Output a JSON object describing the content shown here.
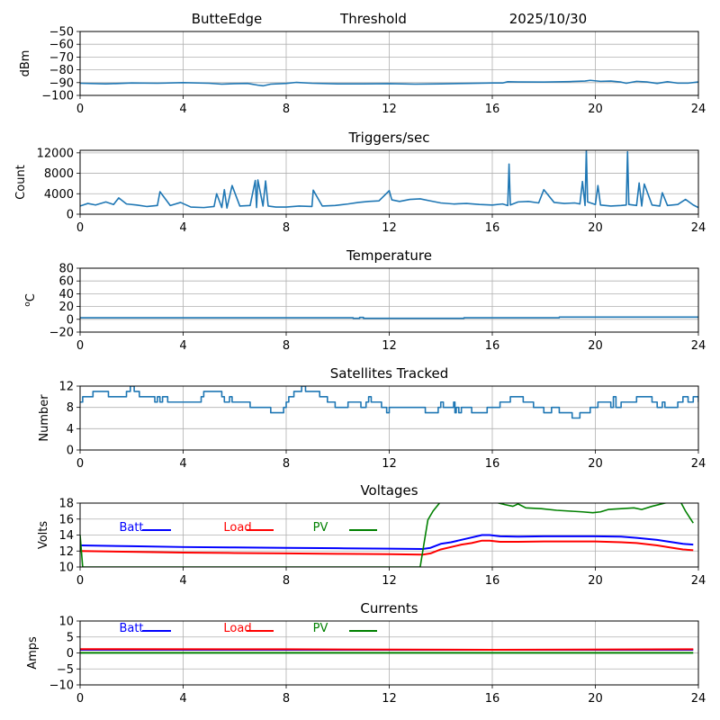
{
  "header": {
    "station": "ButteEdge",
    "mode": "Threshold",
    "date": "2025/10/30"
  },
  "chart_data": [
    {
      "id": "signal",
      "type": "line",
      "title": "",
      "xlabel": "",
      "ylabel": "dBm",
      "xlim": [
        0,
        24
      ],
      "ylim": [
        -100,
        -50
      ],
      "xticks": [
        0,
        4,
        8,
        12,
        16,
        20,
        24
      ],
      "yticks": [
        -100,
        -90,
        -80,
        -70,
        -60,
        -50
      ],
      "ytick_labels": [
        "−100",
        "−90",
        "−80",
        "−70",
        "−60",
        "−50"
      ],
      "grid": true,
      "series": [
        {
          "name": "signal",
          "color": "#1f77b4",
          "x": [
            0,
            1,
            2,
            3,
            4,
            5,
            5.5,
            6,
            6.5,
            6.9,
            7.1,
            7.4,
            8,
            8.4,
            9,
            10,
            11,
            12,
            13,
            14,
            15,
            16,
            16.4,
            16.6,
            17,
            18,
            19,
            19.6,
            19.8,
            20.2,
            20.6,
            21,
            21.2,
            21.6,
            22,
            22.4,
            22.8,
            23.2,
            23.6,
            24
          ],
          "y": [
            -90.5,
            -91,
            -90.3,
            -90.5,
            -90,
            -90.5,
            -91.2,
            -90.8,
            -90.6,
            -92,
            -92.5,
            -91.2,
            -90.6,
            -89.8,
            -90.5,
            -91,
            -91,
            -90.8,
            -91.2,
            -91,
            -90.6,
            -90.3,
            -90.3,
            -89.3,
            -89.5,
            -89.6,
            -89.2,
            -88.8,
            -88.2,
            -89,
            -88.8,
            -89.6,
            -90.5,
            -89,
            -89.5,
            -90.6,
            -89.3,
            -90.4,
            -90.4,
            -89.5
          ]
        }
      ]
    },
    {
      "id": "triggers",
      "type": "line",
      "title": "Triggers/sec",
      "xlabel": "",
      "ylabel": "Count",
      "xlim": [
        0,
        24
      ],
      "ylim": [
        0,
        12500
      ],
      "xticks": [
        0,
        4,
        8,
        12,
        16,
        20,
        24
      ],
      "yticks": [
        0,
        4000,
        8000,
        12000
      ],
      "ytick_labels": [
        "0",
        "4000",
        "8000",
        "12000"
      ],
      "grid": true,
      "series": [
        {
          "name": "triggers",
          "color": "#1f77b4",
          "x": [
            0,
            0.3,
            0.6,
            1.0,
            1.3,
            1.5,
            1.8,
            2.2,
            2.6,
            3.0,
            3.1,
            3.5,
            3.9,
            4.3,
            4.8,
            5.2,
            5.3,
            5.5,
            5.6,
            5.7,
            5.9,
            6.2,
            6.6,
            6.8,
            6.85,
            6.9,
            7.1,
            7.2,
            7.3,
            7.6,
            8.0,
            8.5,
            9.0,
            9.05,
            9.4,
            9.9,
            10.4,
            10.8,
            11.2,
            11.6,
            12.0,
            12.1,
            12.4,
            12.8,
            13.2,
            13.6,
            14.0,
            14.5,
            15.0,
            15.5,
            16.0,
            16.4,
            16.6,
            16.65,
            16.7,
            17.0,
            17.4,
            17.8,
            18.0,
            18.4,
            18.8,
            19.2,
            19.4,
            19.5,
            19.6,
            19.65,
            19.7,
            20.0,
            20.1,
            20.2,
            20.6,
            21.0,
            21.2,
            21.25,
            21.3,
            21.6,
            21.7,
            21.8,
            21.9,
            22.2,
            22.5,
            22.6,
            22.8,
            23.2,
            23.5,
            23.8,
            24
          ],
          "y": [
            1600,
            2100,
            1800,
            2400,
            1900,
            3200,
            2000,
            1800,
            1500,
            1700,
            4400,
            1700,
            2300,
            1400,
            1300,
            1500,
            4000,
            1300,
            4800,
            1200,
            5600,
            1600,
            1700,
            6600,
            1300,
            6700,
            1600,
            6500,
            1600,
            1400,
            1400,
            1600,
            1500,
            4700,
            1600,
            1700,
            2000,
            2300,
            2500,
            2600,
            4600,
            2800,
            2500,
            2900,
            3000,
            2600,
            2200,
            2000,
            2100,
            1900,
            1800,
            2000,
            1700,
            9800,
            1800,
            2400,
            2500,
            2200,
            4800,
            2300,
            2100,
            2200,
            2000,
            6400,
            1700,
            12500,
            2400,
            1900,
            5600,
            1800,
            1600,
            1700,
            1800,
            12200,
            1900,
            1700,
            6100,
            1600,
            5900,
            1800,
            1600,
            4200,
            1700,
            1900,
            2900,
            1800,
            1300
          ]
        }
      ]
    },
    {
      "id": "temperature",
      "type": "line",
      "title": "Temperature",
      "xlabel": "",
      "ylabel": "°C",
      "ylabel_prefix": "o",
      "ylabel_unit": "C",
      "xlim": [
        0,
        24
      ],
      "ylim": [
        -20,
        80
      ],
      "xticks": [
        0,
        4,
        8,
        12,
        16,
        20,
        24
      ],
      "yticks": [
        -20,
        0,
        20,
        40,
        60,
        80
      ],
      "ytick_labels": [
        "−20",
        "0",
        "20",
        "40",
        "60",
        "80"
      ],
      "grid": true,
      "series": [
        {
          "name": "temperature",
          "color": "#1f77b4",
          "x": [
            0,
            10.6,
            10.6,
            10.85,
            10.85,
            11.0,
            11.0,
            14.9,
            14.9,
            18.6,
            18.6,
            24
          ],
          "y": [
            2.5,
            2.5,
            1.5,
            1.5,
            3,
            3,
            1.5,
            1.5,
            2.5,
            2.5,
            3.5,
            3.5
          ]
        }
      ]
    },
    {
      "id": "satellites",
      "type": "line",
      "title": "Satellites Tracked",
      "xlabel": "",
      "ylabel": "Number",
      "xlim": [
        0,
        24
      ],
      "ylim": [
        0,
        12
      ],
      "xticks": [
        0,
        4,
        8,
        12,
        16,
        20,
        24
      ],
      "yticks": [
        0,
        4,
        8,
        12
      ],
      "ytick_labels": [
        "0",
        "4",
        "8",
        "12"
      ],
      "grid": true,
      "series": [
        {
          "name": "satellites",
          "color": "#1f77b4",
          "step": true,
          "x": [
            0,
            0.1,
            0.5,
            1.1,
            1.8,
            1.95,
            2.1,
            2.3,
            2.9,
            3.0,
            3.1,
            3.2,
            3.4,
            3.5,
            4.7,
            4.8,
            5.5,
            5.6,
            5.8,
            5.9,
            6.6,
            7.4,
            7.9,
            8.0,
            8.1,
            8.3,
            8.6,
            8.75,
            9.3,
            9.6,
            9.9,
            10.4,
            10.9,
            11.1,
            11.2,
            11.3,
            11.7,
            11.9,
            12.0,
            12.9,
            13.4,
            13.9,
            14.0,
            14.1,
            14.5,
            14.55,
            14.6,
            14.7,
            14.8,
            15.2,
            15.8,
            16.3,
            16.7,
            17.2,
            17.6,
            18.0,
            18.3,
            18.6,
            19.1,
            19.4,
            19.8,
            20.1,
            20.6,
            20.7,
            20.8,
            21.0,
            21.2,
            21.6,
            22.2,
            22.4,
            22.6,
            22.7,
            23.2,
            23.4,
            23.6,
            23.8,
            24
          ],
          "y": [
            9,
            10,
            11,
            10,
            11,
            12,
            11,
            10,
            9,
            10,
            9,
            10,
            9,
            9,
            10,
            11,
            10,
            9,
            10,
            9,
            8,
            7,
            8,
            9,
            10,
            11,
            12,
            11,
            10,
            9,
            8,
            9,
            8,
            9,
            10,
            9,
            8,
            7,
            8,
            8,
            7,
            8,
            9,
            8,
            9,
            7,
            8,
            7,
            8,
            7,
            8,
            9,
            10,
            9,
            8,
            7,
            8,
            7,
            6,
            7,
            8,
            9,
            8,
            10,
            8,
            9,
            9,
            10,
            9,
            8,
            9,
            8,
            9,
            10,
            9,
            10,
            9
          ]
        }
      ]
    },
    {
      "id": "voltages",
      "type": "line",
      "title": "Voltages",
      "xlabel": "",
      "ylabel": "Volts",
      "xlim": [
        0,
        24
      ],
      "ylim": [
        10,
        18
      ],
      "xticks": [
        0,
        4,
        8,
        12,
        16,
        20,
        24
      ],
      "yticks": [
        10,
        12,
        14,
        16,
        18
      ],
      "ytick_labels": [
        "10",
        "12",
        "14",
        "16",
        "18"
      ],
      "grid": true,
      "legend": "top-left, inline",
      "series": [
        {
          "name": "Batt",
          "color": "#0000ff",
          "x": [
            0,
            2,
            4,
            6,
            8,
            10,
            12,
            13.3,
            13.6,
            14.0,
            14.4,
            14.8,
            15.2,
            15.6,
            15.9,
            16.3,
            17,
            18,
            19,
            20,
            21,
            21.6,
            22.4,
            23.0,
            23.4,
            23.8
          ],
          "y": [
            12.7,
            12.6,
            12.5,
            12.45,
            12.4,
            12.35,
            12.3,
            12.25,
            12.4,
            12.9,
            13.1,
            13.4,
            13.7,
            14.0,
            14.0,
            13.85,
            13.8,
            13.85,
            13.85,
            13.85,
            13.8,
            13.65,
            13.4,
            13.1,
            12.9,
            12.8
          ]
        },
        {
          "name": "Load",
          "color": "#ff0000",
          "x": [
            0,
            2,
            4,
            6,
            8,
            10,
            12,
            13.3,
            13.6,
            14.0,
            14.4,
            14.8,
            15.2,
            15.6,
            15.9,
            16.3,
            17,
            18,
            19,
            20,
            21,
            21.6,
            22.4,
            23.0,
            23.4,
            23.8
          ],
          "y": [
            12.0,
            11.9,
            11.8,
            11.75,
            11.7,
            11.65,
            11.6,
            11.55,
            11.7,
            12.2,
            12.5,
            12.8,
            13.0,
            13.3,
            13.3,
            13.15,
            13.15,
            13.2,
            13.2,
            13.2,
            13.1,
            13.0,
            12.7,
            12.4,
            12.2,
            12.1
          ]
        },
        {
          "name": "PV",
          "color": "#008000",
          "x": [
            0,
            0.1,
            13.2,
            13.5,
            13.7,
            14.0,
            16.0,
            16.5,
            16.8,
            17.0,
            17.3,
            17.9,
            18.5,
            19.0,
            19.5,
            19.9,
            20.2,
            20.5,
            21.0,
            21.5,
            21.8,
            22.2,
            22.7,
            23.1,
            23.3,
            23.5,
            23.8
          ],
          "y": [
            14.0,
            10.0,
            10.0,
            15.9,
            17.0,
            18.2,
            18.2,
            17.8,
            17.6,
            17.9,
            17.4,
            17.3,
            17.1,
            17.0,
            16.9,
            16.8,
            16.9,
            17.2,
            17.3,
            17.4,
            17.2,
            17.6,
            18.0,
            18.2,
            18.2,
            17.0,
            15.5
          ]
        }
      ]
    },
    {
      "id": "currents",
      "type": "line",
      "title": "Currents",
      "xlabel": "",
      "ylabel": "Amps",
      "xlim": [
        0,
        24
      ],
      "ylim": [
        -10,
        10
      ],
      "xticks": [
        0,
        4,
        8,
        12,
        16,
        20,
        24
      ],
      "yticks": [
        -10,
        -5,
        0,
        5,
        10
      ],
      "ytick_labels": [
        "−10",
        "−5",
        "0",
        "5",
        "10"
      ],
      "grid": true,
      "legend": "top-left, inline",
      "series": [
        {
          "name": "Batt",
          "color": "#0000ff",
          "x": [
            0,
            23.8
          ],
          "y": [
            1.0,
            1.0
          ]
        },
        {
          "name": "Load",
          "color": "#ff0000",
          "x": [
            0,
            8,
            16,
            23.8
          ],
          "y": [
            1.2,
            1.15,
            1.0,
            1.15
          ]
        },
        {
          "name": "PV",
          "color": "#008000",
          "x": [
            0,
            23.8
          ],
          "y": [
            0.05,
            0.05
          ]
        }
      ]
    }
  ]
}
